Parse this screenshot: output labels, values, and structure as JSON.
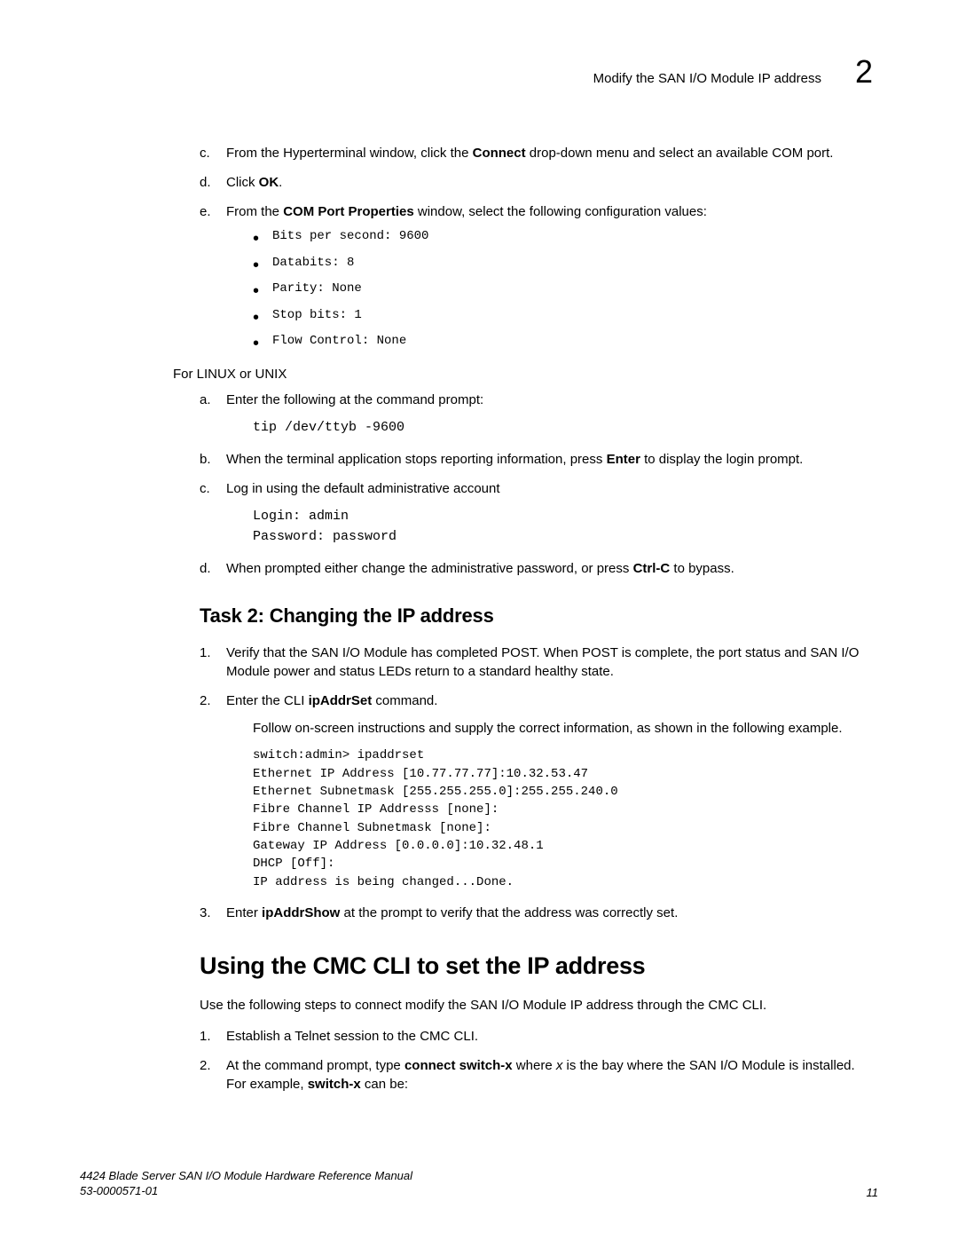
{
  "header": {
    "title": "Modify the SAN I/O Module IP address",
    "chapter": "2"
  },
  "letters_c_to_e": {
    "c": {
      "marker": "c.",
      "pre": "From the Hyperterminal window, click the ",
      "bold1": "Connect",
      "post": " drop-down menu and select an available COM port."
    },
    "d": {
      "marker": "d.",
      "pre": "Click ",
      "bold1": "OK",
      "post": "."
    },
    "e": {
      "marker": "e.",
      "pre": "From the ",
      "bold1": "COM Port Properties",
      "post": " window, select the following configuration values:"
    }
  },
  "com_values": [
    "Bits per second: 9600",
    "Databits: 8",
    "Parity: None",
    "Stop bits: 1",
    "Flow Control: None"
  ],
  "linux_label": "For LINUX or UNIX",
  "linux_steps": {
    "a": {
      "marker": "a.",
      "text": "Enter the following at the command prompt:",
      "code": "tip /dev/ttyb -9600"
    },
    "b": {
      "marker": "b.",
      "pre": "When the terminal application stops reporting information, press ",
      "bold1": "Enter",
      "post": " to display the login prompt."
    },
    "c": {
      "marker": "c.",
      "text": "Log in using the default administrative account",
      "code": "Login: admin\nPassword: password"
    },
    "d": {
      "marker": "d.",
      "pre": "When prompted either change the administrative password, or press ",
      "bold1": "Ctrl-C",
      "post": " to bypass."
    }
  },
  "task2": {
    "heading": "Task 2: Changing the IP address",
    "n1": {
      "m": "1.",
      "text": "Verify that the SAN I/O Module has completed POST. When POST is complete, the port status and SAN I/O Module power and status LEDs return to a standard healthy state."
    },
    "n2": {
      "m": "2.",
      "pre": "Enter the CLI ",
      "bold": "ipAddrSet",
      "post": " command.",
      "follow": "Follow on-screen instructions and supply the correct information, as shown in the following example.",
      "code": "switch:admin> ipaddrset\nEthernet IP Address [10.77.77.77]:10.32.53.47\nEthernet Subnetmask [255.255.255.0]:255.255.240.0\nFibre Channel IP Addresss [none]:\nFibre Channel Subnetmask [none]:\nGateway IP Address [0.0.0.0]:10.32.48.1\nDHCP [Off]:\nIP address is being changed...Done."
    },
    "n3": {
      "m": "3.",
      "pre": "Enter ",
      "bold": "ipAddrShow",
      "post": " at the prompt to verify that the address was correctly set."
    }
  },
  "cmc": {
    "heading": "Using the CMC CLI to set the IP address",
    "intro": "Use the following steps to connect modify the SAN I/O Module IP address through the CMC CLI.",
    "n1": {
      "m": "1.",
      "text": "Establish a Telnet session to the CMC CLI."
    },
    "n2": {
      "m": "2.",
      "pre": "At the command prompt, type ",
      "bold1": "connect switch-x",
      "mid1": " where ",
      "ital": "x",
      "mid2": " is the bay where the SAN I/O Module is installed. For example, ",
      "bold2": "switch-x",
      "post": " can be:"
    }
  },
  "footer": {
    "line1": "4424 Blade Server SAN I/O Module Hardware Reference Manual",
    "line2": "53-0000571-01",
    "page": "11"
  }
}
